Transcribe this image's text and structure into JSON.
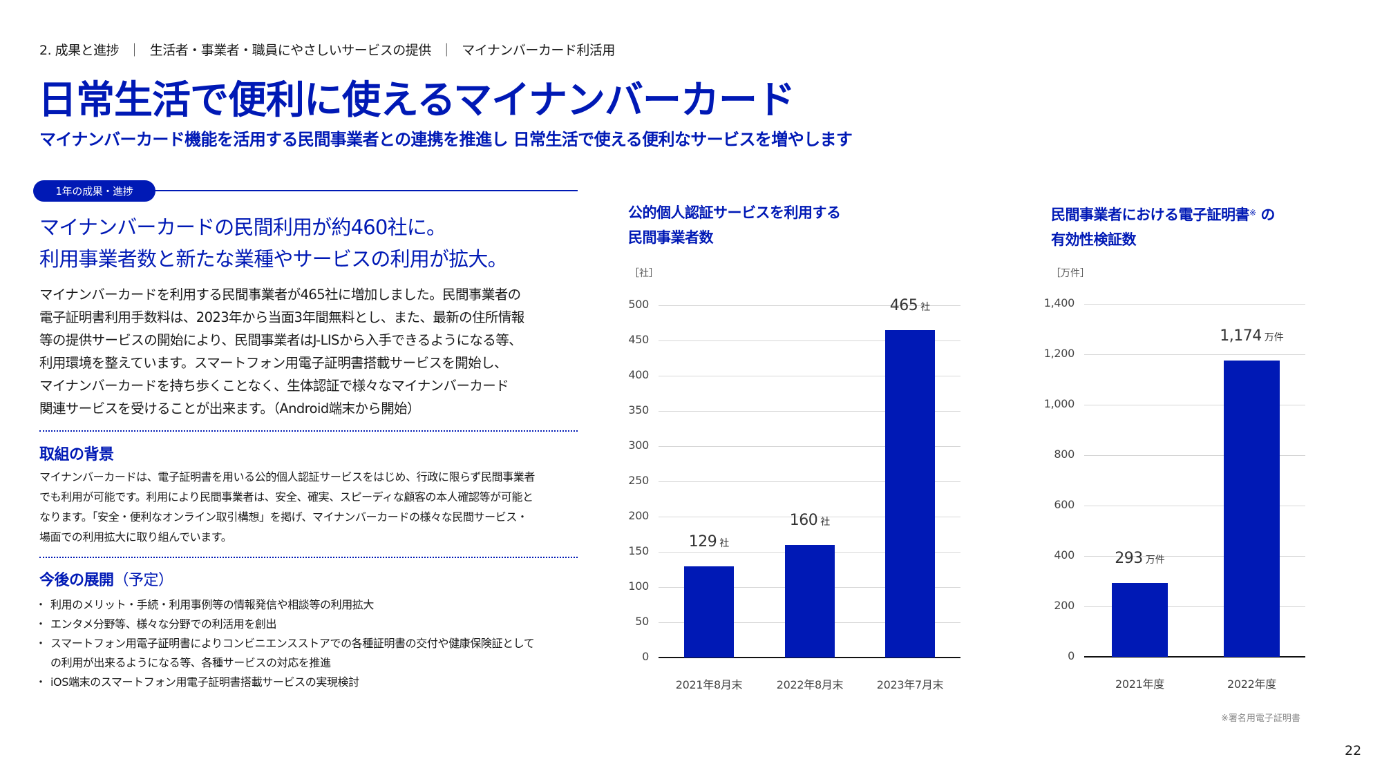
{
  "breadcrumb": {
    "items": [
      "2. 成果と進捗",
      "生活者・事業者・職員にやさしいサービスの提供",
      "マイナンバーカード利活用"
    ],
    "separator": "｜"
  },
  "header": {
    "title": "日常生活で便利に使えるマイナンバーカード",
    "subtitle": "マイナンバーカード機能を活用する民間事業者との連携を推進し 日常生活で使える便利なサービスを増やします"
  },
  "progress_section": {
    "badge": "1年の成果・進捗",
    "headline": [
      "マイナンバーカードの民間利用が約460社に。",
      "利用事業者数と新たな業種やサービスの利用が拡大。"
    ],
    "body": [
      "マイナンバーカードを利用する民間事業者が465社に増加しました。民間事業者の",
      "電子証明書利用手数料は、2023年から当面3年間無料とし、また、最新の住所情報",
      "等の提供サービスの開始により、民間事業者はJ-LISから入手できるようになる等、",
      "利用環境を整えています。スマートフォン用電子証明書搭載サービスを開始し、",
      "マイナンバーカードを持ち歩くことなく、生体認証で様々なマイナンバーカード",
      "関連サービスを受けることが出来ます。（Android端末から開始）"
    ]
  },
  "background_section": {
    "heading": "取組の背景",
    "body": [
      "マイナンバーカードは、電子証明書を用いる公的個人認証サービスをはじめ、行政に限らず民間事業者",
      "でも利用が可能です。利用により民間事業者は、安全、確実、スピーディな顧客の本人確認等が可能と",
      "なります。「安全・便利なオンライン取引構想」を掲げ、マイナンバーカードの様々な民間サービス・",
      "場面での利用拡大に取り組んでいます。"
    ]
  },
  "future_section": {
    "heading": "今後の展開",
    "heading_suffix": "（予定）",
    "bullets": [
      {
        "lines": [
          "利用のメリット・手続・利用事例等の情報発信や相談等の利用拡大"
        ]
      },
      {
        "lines": [
          "エンタメ分野等、様々な分野での利活用を創出"
        ]
      },
      {
        "lines": [
          "スマートフォン用電子証明書によりコンビニエンスストアでの各種証明書の交付や健康保険証として",
          "の利用が出来るようになる等、各種サービスの対応を推進"
        ]
      },
      {
        "lines": [
          "iOS端末のスマートフォン用電子証明書搭載サービスの実現検討"
        ]
      }
    ]
  },
  "chart_data": [
    {
      "type": "bar",
      "title": "公的個人認証サービスを利用する民間事業者数",
      "title_lines": [
        "公的個人認証サービスを利用する",
        "民間事業者数"
      ],
      "unit_label": "［社］",
      "xlabel": "",
      "ylabel": "社",
      "categories": [
        "2021年8月末",
        "2022年8月末",
        "2023年7月末"
      ],
      "values": [
        129,
        160,
        465
      ],
      "data_labels": [
        {
          "num": "129",
          "unit": "社"
        },
        {
          "num": "160",
          "unit": "社"
        },
        {
          "num": "465",
          "unit": "社"
        }
      ],
      "ylim": [
        0,
        500
      ],
      "yticks": [
        "0",
        "50",
        "100",
        "150",
        "200",
        "250",
        "300",
        "350",
        "400",
        "450",
        "500"
      ],
      "grid": true,
      "color": "#0019b5"
    },
    {
      "type": "bar",
      "title": "民間事業者における電子証明書※ の有効性検証数",
      "title_lines": [
        "民間事業者における電子証明書",
        "※",
        " の",
        "有効性検証数"
      ],
      "unit_label": "［万件］",
      "xlabel": "",
      "ylabel": "万件",
      "categories": [
        "2021年度",
        "2022年度"
      ],
      "values": [
        293,
        1174
      ],
      "data_labels": [
        {
          "num": "293",
          "unit": "万件"
        },
        {
          "num": "1,174",
          "unit": "万件"
        }
      ],
      "ylim": [
        0,
        1400
      ],
      "yticks": [
        "0",
        "200",
        "400",
        "600",
        "800",
        "1,000",
        "1,200",
        "1,400"
      ],
      "grid": true,
      "color": "#0019b5",
      "footnote": "※署名用電子証明書"
    }
  ],
  "footer": {
    "page_number": "22"
  },
  "colors": {
    "accent": "#0019b5",
    "gridline": "#d6d6d6",
    "text": "#1a1a1a"
  }
}
